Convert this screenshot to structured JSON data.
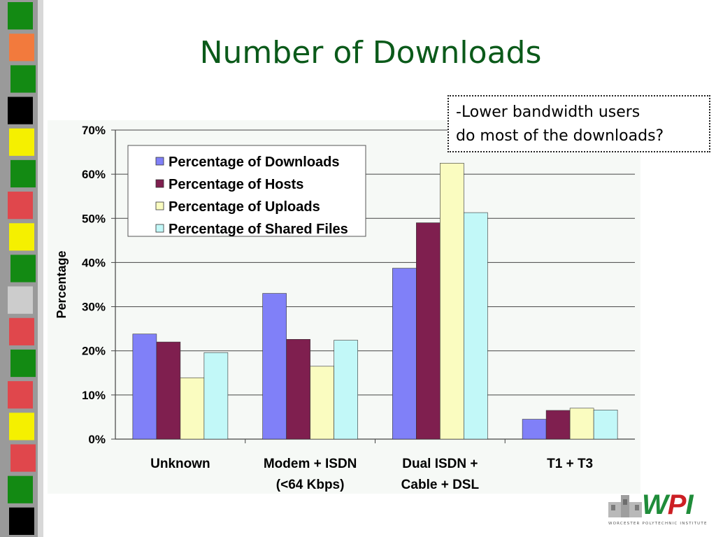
{
  "slide": {
    "title": "Number of Downloads",
    "callout": {
      "line1": "-Lower bandwidth users",
      "line2": "do most of the downloads?"
    },
    "logo": {
      "text_green": "W",
      "text_red": "P",
      "text_green2": "I",
      "subtitle": "WORCESTER POLYTECHNIC INSTITUTE"
    }
  },
  "chart_data": {
    "type": "bar",
    "title": "",
    "xlabel": "",
    "ylabel": "Percentage",
    "ylim": [
      0,
      70
    ],
    "yticks": [
      "0%",
      "10%",
      "20%",
      "30%",
      "40%",
      "50%",
      "60%",
      "70%"
    ],
    "grid": true,
    "legend_position": "top-left",
    "categories": [
      [
        "Unknown"
      ],
      [
        "Modem + ISDN",
        "(<64 Kbps)"
      ],
      [
        "Dual ISDN +",
        "Cable + DSL"
      ],
      [
        "T1 + T3"
      ]
    ],
    "series": [
      {
        "name": "Percentage of Downloads",
        "color": "#8080f8",
        "values": [
          23.8,
          33.0,
          38.7,
          4.5
        ]
      },
      {
        "name": "Percentage of Hosts",
        "color": "#7f1f4f",
        "values": [
          22.0,
          22.6,
          49.0,
          6.5
        ]
      },
      {
        "name": "Percentage of Uploads",
        "color": "#fafcc0",
        "values": [
          13.9,
          16.5,
          62.5,
          7.0
        ]
      },
      {
        "name": "Percentage of Shared Files",
        "color": "#c2f8f8",
        "values": [
          19.6,
          22.4,
          51.3,
          6.6
        ]
      }
    ]
  },
  "decor": {
    "strip_colors": [
      "#138a13",
      "#f27a3d",
      "#138a13",
      "#000000",
      "#f5f000",
      "#138a13",
      "#e0474c",
      "#f5f000",
      "#138a13",
      "#cccccc",
      "#e0474c",
      "#138a13",
      "#e0474c",
      "#f5f000",
      "#e0474c",
      "#138a13",
      "#000000"
    ]
  }
}
